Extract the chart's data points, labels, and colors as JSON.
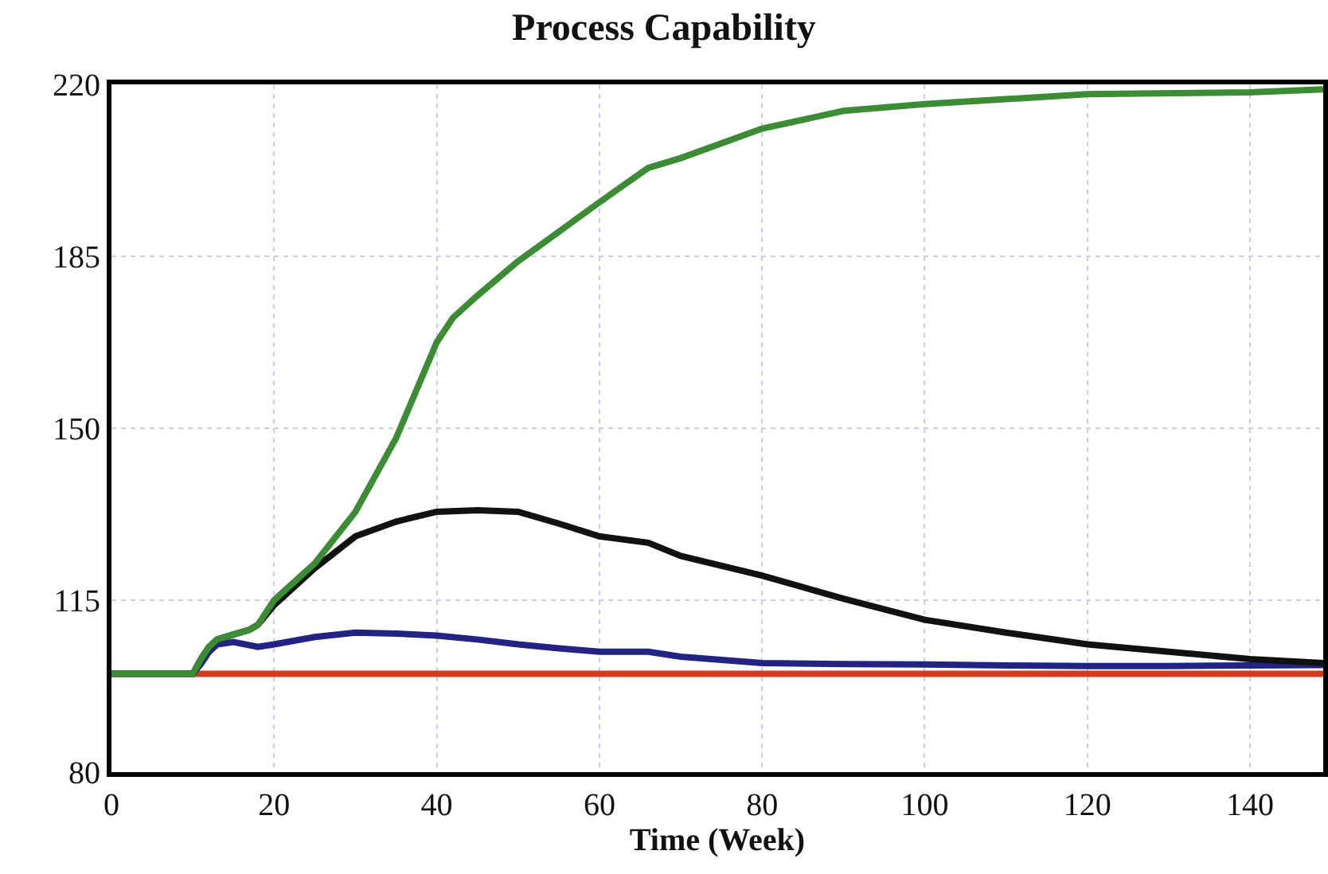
{
  "chart_data": {
    "type": "line",
    "title": "Process Capability",
    "xlabel": "Time (Week)",
    "xlim": [
      0,
      149
    ],
    "xticks": [
      0,
      20,
      40,
      60,
      80,
      100,
      120,
      140
    ],
    "ylim": [
      80,
      220
    ],
    "yticks": [
      80,
      115,
      150,
      185,
      220
    ],
    "grid": true,
    "marker": "none",
    "line_style": "solid",
    "series": [
      {
        "color": "#d23b1f",
        "x": [
          10,
          40,
          80,
          120,
          149
        ],
        "values": [
          100,
          100,
          100,
          100,
          100
        ]
      },
      {
        "color": "#232384",
        "x": [
          0,
          10,
          11,
          12,
          13,
          15,
          18,
          20,
          25,
          30,
          35,
          40,
          45,
          50,
          55,
          60,
          66,
          70,
          80,
          90,
          100,
          110,
          120,
          130,
          140,
          149
        ],
        "values": [
          100,
          100,
          102,
          104.5,
          106,
          106.5,
          105.5,
          106,
          107.5,
          108.4,
          108.2,
          107.8,
          107,
          106,
          105.2,
          104.5,
          104.5,
          103.5,
          102.2,
          102,
          101.9,
          101.7,
          101.6,
          101.6,
          101.7,
          101.8
        ]
      },
      {
        "color": "#111111",
        "x": [
          0,
          10,
          11,
          12,
          13,
          15,
          17,
          18,
          20,
          25,
          30,
          35,
          40,
          45,
          50,
          55,
          60,
          66,
          70,
          80,
          90,
          100,
          110,
          120,
          130,
          140,
          149
        ],
        "values": [
          100,
          100,
          103,
          105.5,
          107,
          108,
          109,
          110,
          114,
          121.5,
          128,
          131,
          133,
          133.3,
          133,
          130.6,
          128,
          126.7,
          124,
          120,
          115.3,
          111,
          108.4,
          106,
          104.5,
          103,
          102.2
        ]
      },
      {
        "color": "#3b8c34",
        "x": [
          0,
          10,
          11,
          12,
          13,
          15,
          17,
          18,
          20,
          25,
          30,
          35,
          40,
          42,
          45,
          50,
          55,
          60,
          66,
          70,
          80,
          90,
          100,
          110,
          120,
          140,
          149
        ],
        "values": [
          100,
          100,
          103,
          105.5,
          107,
          108,
          109,
          110,
          115,
          122.5,
          133,
          148,
          167.5,
          172.5,
          177,
          184,
          190,
          196,
          203,
          205,
          211,
          214.6,
          216,
          217,
          218,
          218.4,
          219
        ]
      }
    ]
  }
}
